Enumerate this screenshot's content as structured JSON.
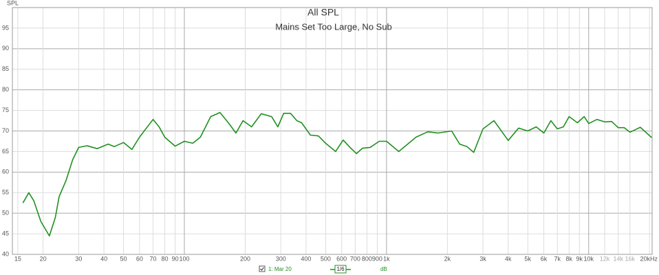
{
  "chart_data": {
    "type": "line",
    "title": "All SPL",
    "subtitle": "Mains Set Too Large, No Sub",
    "y_label": "SPL",
    "xscale": "log",
    "grid": true,
    "xlim": [
      14.1,
      20600
    ],
    "ylim": [
      40,
      100
    ],
    "yticks": [
      40,
      45,
      50,
      55,
      60,
      65,
      70,
      75,
      80,
      85,
      90,
      95
    ],
    "xticks": [
      15,
      20,
      30,
      40,
      50,
      60,
      70,
      80,
      90,
      100,
      200,
      300,
      400,
      500,
      600,
      700,
      800,
      900,
      {
        "value": 1000,
        "label": "1k"
      },
      {
        "value": 2000,
        "label": "2k"
      },
      {
        "value": 3000,
        "label": "3k"
      },
      {
        "value": 4000,
        "label": "4k"
      },
      {
        "value": 5000,
        "label": "5k"
      },
      {
        "value": 6000,
        "label": "6k"
      },
      {
        "value": 7000,
        "label": "7k"
      },
      {
        "value": 8000,
        "label": "8k"
      },
      {
        "value": 9000,
        "label": "9k"
      },
      {
        "value": 10000,
        "label": "10k"
      },
      {
        "value": 12000,
        "label": "12k"
      },
      {
        "value": 14000,
        "label": "14k"
      },
      {
        "value": 16000,
        "label": "16k"
      },
      {
        "value": 20000,
        "label": "20kHz"
      }
    ],
    "x": [
      15.9,
      17,
      18,
      19.5,
      21.5,
      23,
      24,
      26,
      28,
      30,
      33,
      37,
      42,
      45,
      50,
      55,
      60,
      70,
      75,
      80,
      90,
      100,
      110,
      120,
      135,
      150,
      165,
      180,
      195,
      215,
      240,
      270,
      290,
      310,
      335,
      360,
      380,
      420,
      460,
      500,
      560,
      610,
      660,
      710,
      760,
      830,
      920,
      1000,
      1150,
      1400,
      1600,
      1800,
      2100,
      2300,
      2500,
      2700,
      3000,
      3400,
      4000,
      4500,
      5000,
      5500,
      6000,
      6500,
      7000,
      7500,
      8000,
      8800,
      9500,
      10000,
      11000,
      12000,
      13000,
      14000,
      15000,
      16000,
      17000,
      18000,
      20500
    ],
    "series": [
      {
        "name": "1: Mar 20",
        "color": "#1f8f1f",
        "values": [
          52.5,
          55,
          53,
          48,
          44.5,
          49,
          54,
          58,
          63,
          66,
          66.4,
          65.7,
          66.8,
          66.2,
          67.2,
          65.5,
          68.5,
          72.8,
          71,
          68.5,
          66.3,
          67.5,
          67,
          68.5,
          73.5,
          74.5,
          72,
          69.5,
          72.5,
          71,
          74.2,
          73.5,
          71,
          74.3,
          74.3,
          72.5,
          72,
          69,
          68.8,
          67,
          65,
          67.8,
          66,
          64.5,
          65.8,
          66,
          67.5,
          67.5,
          65,
          68.5,
          69.8,
          69.5,
          70,
          66.8,
          66.2,
          64.8,
          70.5,
          72.5,
          67.7,
          70.7,
          70,
          71,
          69.5,
          72.5,
          70.5,
          71,
          73.5,
          72,
          73.5,
          71.8,
          72.8,
          72.2,
          72.3,
          70.8,
          70.8,
          69.7,
          70.3,
          70.9,
          68.4
        ]
      }
    ],
    "smoothing": "1/6",
    "units_label": "dB"
  }
}
